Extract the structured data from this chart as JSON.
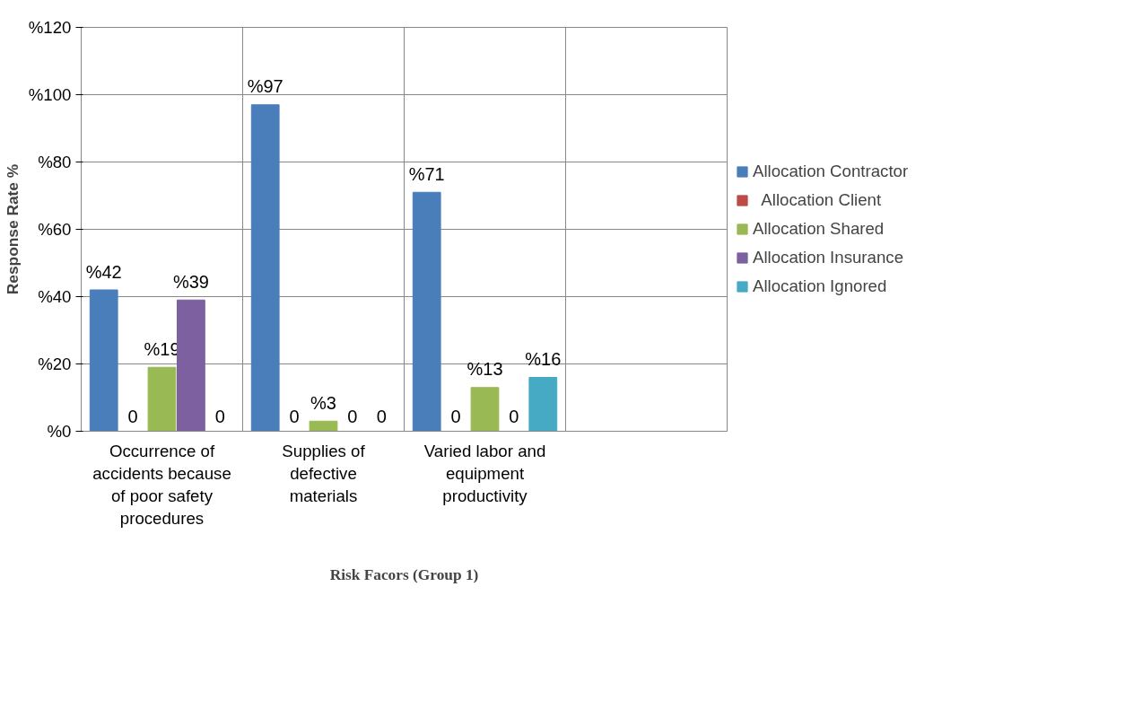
{
  "chart_data": {
    "type": "bar",
    "categories": [
      "Occurrence of accidents because of poor safety procedures",
      "Supplies of defective materials",
      "Varied labor and equipment productivity",
      null
    ],
    "series": [
      {
        "name": "Allocation Contractor",
        "color": "#4a7ebb",
        "values": [
          42,
          97,
          71,
          null
        ],
        "value_labels": [
          "%42",
          "%97",
          "%71",
          null
        ]
      },
      {
        "name": "  Allocation Client",
        "color": "#be4b48",
        "values": [
          0,
          0,
          0,
          null
        ],
        "value_labels": [
          "0",
          "0",
          "0",
          null
        ]
      },
      {
        "name": "Allocation Shared",
        "color": "#98b954",
        "values": [
          19,
          3,
          13,
          null
        ],
        "value_labels": [
          "%19",
          "%3",
          "%13",
          null
        ]
      },
      {
        "name": "Allocation Insurance",
        "color": "#7d60a0",
        "values": [
          39,
          0,
          0,
          null
        ],
        "value_labels": [
          "%39",
          "0",
          "0",
          null
        ]
      },
      {
        "name": "Allocation Ignored",
        "color": "#46aac5",
        "values": [
          0,
          0,
          16,
          null
        ],
        "value_labels": [
          "0",
          "0",
          "%16",
          null
        ]
      }
    ],
    "ylim": [
      0,
      120
    ],
    "yticks": [
      {
        "value": 0,
        "label": "%0"
      },
      {
        "value": 20,
        "label": "%20"
      },
      {
        "value": 40,
        "label": "%40"
      },
      {
        "value": 60,
        "label": "%60"
      },
      {
        "value": 80,
        "label": "%80"
      },
      {
        "value": 100,
        "label": "%100"
      },
      {
        "value": 120,
        "label": "%120"
      }
    ],
    "ylabel": "Response Rate %",
    "xlabel": "Risk Facors (Group 1)",
    "grid": true,
    "legend": "right"
  }
}
